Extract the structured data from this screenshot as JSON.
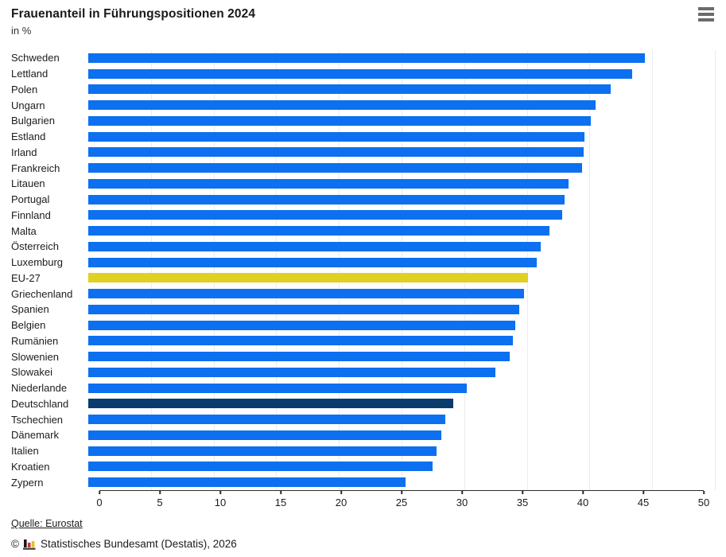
{
  "header": {
    "title": "Frauenanteil in Führungspositionen 2024",
    "subtitle": "in %"
  },
  "chart_data": {
    "type": "bar",
    "orientation": "horizontal",
    "title": "Frauenanteil in Führungspositionen 2024",
    "subtitle": "in %",
    "xlabel": "",
    "ylabel": "",
    "xlim": [
      0,
      50
    ],
    "ticks": [
      0,
      5,
      10,
      15,
      20,
      25,
      30,
      35,
      40,
      45,
      50
    ],
    "grid": true,
    "categories": [
      "Schweden",
      "Lettland",
      "Polen",
      "Ungarn",
      "Bulgarien",
      "Estland",
      "Irland",
      "Frankreich",
      "Litauen",
      "Portugal",
      "Finnland",
      "Malta",
      "Österreich",
      "Luxemburg",
      "EU-27",
      "Griechenland",
      "Spanien",
      "Belgien",
      "Rumänien",
      "Slowenien",
      "Slowakei",
      "Niederlande",
      "Deutschland",
      "Tschechien",
      "Dänemark",
      "Italien",
      "Kroatien",
      "Zypern"
    ],
    "values": [
      44.4,
      43.4,
      41.7,
      40.5,
      40.1,
      39.6,
      39.5,
      39.4,
      38.3,
      38.0,
      37.8,
      36.8,
      36.1,
      35.8,
      35.1,
      34.8,
      34.4,
      34.1,
      33.9,
      33.6,
      32.5,
      30.2,
      29.1,
      28.5,
      28.2,
      27.8,
      27.5,
      25.3
    ],
    "highlight": {
      "EU-27": "eu27",
      "Deutschland": "germany"
    },
    "colors": {
      "default": "#0c70f0",
      "eu27": "#e2cf24",
      "germany": "#093c6d"
    }
  },
  "footer": {
    "source_label": "Quelle: Eurostat",
    "copyright_symbol": "©",
    "copyright_text": "Statistisches Bundesamt (Destatis), 2026",
    "logo_colors": {
      "black": "#1a1a1a",
      "red": "#c8372d",
      "gold": "#e8bf2a",
      "base": "#3c3c3c"
    }
  },
  "ui_colors": {
    "grid": "#ececec",
    "axis": "#2b2b2b",
    "menu_icon": "#6b6b6b"
  }
}
